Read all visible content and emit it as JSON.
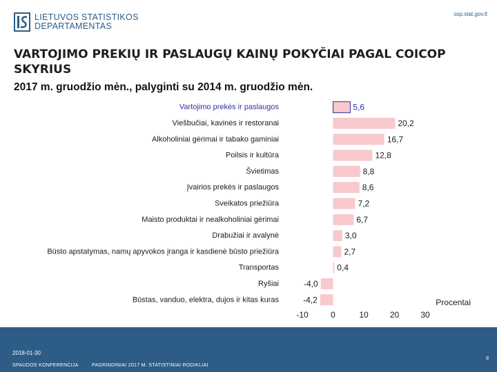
{
  "header": {
    "logo_line1": "Lietuvos statistikos",
    "logo_line2": "departamentas",
    "site_url": "osp.stat.gov.lt"
  },
  "slide": {
    "title": "VARTOJIMO PREKIŲ IR PASLAUGŲ KAINŲ POKYČIAI PAGAL COICOP SKYRIUS",
    "subtitle": "2017 m. gruodžio mėn., palyginti su 2014 m. gruodžio mėn."
  },
  "chart_data": {
    "type": "bar",
    "orientation": "horizontal",
    "xlabel": "Procentai",
    "xlim": [
      -10,
      30
    ],
    "xticks": [
      "-10",
      "0",
      "10",
      "20",
      "30"
    ],
    "bar_color": "#f9c9cd",
    "highlight_color": "#2a2f9a",
    "categories": [
      "Vartojimo prekės ir paslaugos",
      "Viešbučiai, kavinės ir restoranai",
      "Alkoholiniai gėrimai ir tabako gaminiai",
      "Poilsis ir kultūra",
      "Švietimas",
      "Įvairios prekės ir paslaugos",
      "Sveikatos priežiūra",
      "Maisto produktai ir nealkoholiniai gėrimai",
      "Drabužiai ir avalynė",
      "Būsto apstatymas, namų apyvokos įranga ir kasdienė būsto priežiūra",
      "Transportas",
      "Ryšiai",
      "Būstas, vanduo, elektra, dujos ir kitas kuras"
    ],
    "values": [
      5.6,
      20.2,
      16.7,
      12.8,
      8.8,
      8.6,
      7.2,
      6.7,
      3.0,
      2.7,
      0.4,
      -4.0,
      -4.2
    ],
    "value_labels": [
      "5,6",
      "20,2",
      "16,7",
      "12,8",
      "8,8",
      "8,6",
      "7,2",
      "6,7",
      "3,0",
      "2,7",
      "0,4",
      "-4,0",
      "-4,2"
    ]
  },
  "footer": {
    "date": "2018-01-30",
    "conference": "SPAUDOS KONFERENCIJA",
    "section": "PAGRINDINIAI 2017 M. STATISTINIAI RODIKLIAI",
    "page": "8"
  }
}
